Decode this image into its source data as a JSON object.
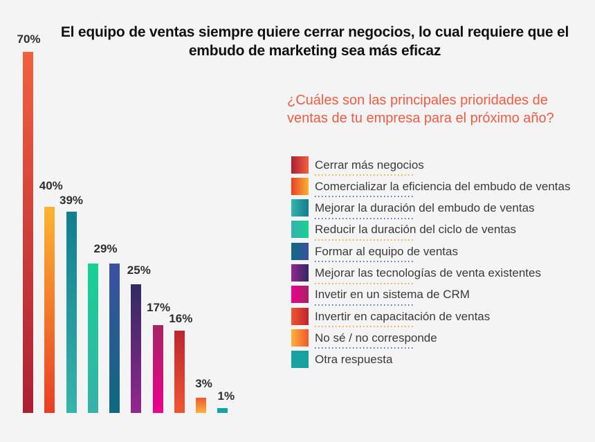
{
  "page": {
    "background": "#f4f4f4",
    "title": "El equipo de ventas siempre quiere cerrar negocios, lo cual requiere que el embudo de marketing sea más eficaz",
    "question": "¿Cuáles son las principales prioridades de ventas de tu empresa para el próximo año?",
    "question_color": "#f15b43",
    "title_color": "#101010"
  },
  "chart_data": {
    "type": "bar",
    "title": "El equipo de ventas siempre quiere cerrar negocios, lo cual requiere que el embudo de marketing sea más eficaz",
    "subtitle": "¿Cuáles son las principales prioridades de ventas de tu empresa para el próximo año?",
    "unit": "%",
    "ylim": [
      0,
      70
    ],
    "grid": false,
    "axis_lines": false,
    "legend_position": "right",
    "categories": [
      "Cerrar más negocios",
      "Comercializar la eficiencia del embudo de ventas",
      "Mejorar la duración del embudo de ventas",
      "Reducir la duración del ciclo de ventas",
      "Formar al equipo de ventas",
      "Mejorar las tecnologías de venta existentes",
      "Invetir en un sistema de CRM",
      "Invertir en capacitación de ventas",
      "No sé / no corresponde",
      "Otra respuesta"
    ],
    "values": [
      70,
      40,
      39,
      29,
      29,
      25,
      17,
      16,
      3,
      1
    ],
    "value_labels": [
      "70%",
      "40%",
      "39%",
      "",
      "29%",
      "25%",
      "17%",
      "16%",
      "3%",
      "1%"
    ],
    "items": [
      {
        "category": "Cerrar más negocios",
        "value": 70,
        "label": "70%",
        "color_top": "#f3603e",
        "color_bottom": "#ab1f34",
        "underline": "#f2a43a",
        "label_gap": 10,
        "label_dx": 1
      },
      {
        "category": "Comercializar la eficiencia del embudo de ventas",
        "value": 40,
        "label": "40%",
        "color_top": "#fcb431",
        "color_bottom": "#e93e25",
        "underline": "#4a74b8",
        "label_gap": 22,
        "label_dx": 2
      },
      {
        "category": "Mejorar la duración del embudo de ventas",
        "value": 39,
        "label": "39%",
        "color_top": "#127d8d",
        "color_bottom": "#36b4ac",
        "underline": "#4a74b8",
        "label_gap": 8,
        "label_dx": 0
      },
      {
        "category": "Reducir la duración del ciclo de ventas",
        "value": 29,
        "label": "",
        "color_top": "#17d195",
        "color_bottom": "#36b1a9",
        "underline": "#f2a43a",
        "label_gap": 13,
        "label_dx": 0
      },
      {
        "category": "Formar al equipo de ventas",
        "value": 29,
        "label": "29%",
        "color_top": "#3c50a2",
        "color_bottom": "#0d6a80",
        "underline": "#4a74b8",
        "label_gap": 13,
        "label_dx": -13
      },
      {
        "category": "Mejorar las tecnologías de venta existentes",
        "value": 25,
        "label": "25%",
        "color_top": "#302a63",
        "color_bottom": "#93278f",
        "underline": "#f2a43a",
        "label_gap": 12,
        "label_dx": 4
      },
      {
        "category": "Invetir en un sistema de CRM",
        "value": 17,
        "label": "17%",
        "color_top": "#a62464",
        "color_bottom": "#ec008c",
        "underline": "#4a74b8",
        "label_gap": 17,
        "label_dx": 1
      },
      {
        "category": "Invertir en capacitación de ventas",
        "value": 16,
        "label": "16%",
        "color_top": "#bd2530",
        "color_bottom": "#f05531",
        "underline": "#f2a43a",
        "label_gap": 9,
        "label_dx": 2
      },
      {
        "category": "No sé / no corresponde",
        "value": 3,
        "label": "3%",
        "color_top": "#f0592c",
        "color_bottom": "#fbb13d",
        "underline": "#4a74b8",
        "label_gap": 12,
        "label_dx": 4
      },
      {
        "category": "Otra respuesta",
        "value": 1,
        "label": "1%",
        "color_top": "#17a09e",
        "color_bottom": "#19a3a0",
        "underline": null,
        "label_gap": 9,
        "label_dx": 5
      }
    ]
  }
}
